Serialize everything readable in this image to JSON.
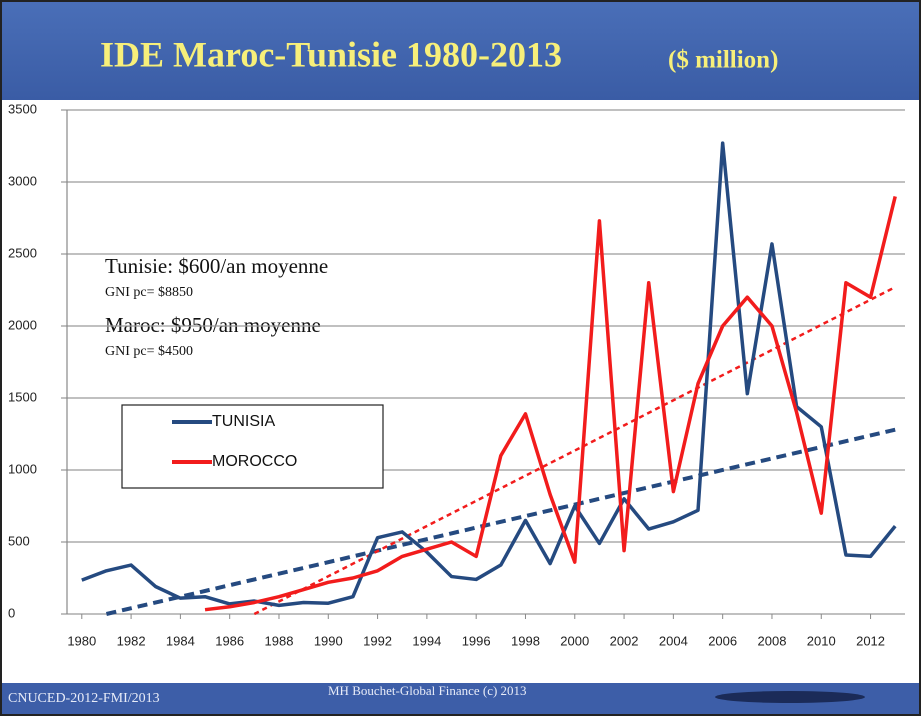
{
  "chart_data": {
    "type": "line",
    "title": "IDE Maroc-Tunisie 1980-2013",
    "subtitle": "($ million)",
    "x": [
      1980,
      1981,
      1982,
      1983,
      1984,
      1985,
      1986,
      1987,
      1988,
      1989,
      1990,
      1991,
      1992,
      1993,
      1994,
      1995,
      1996,
      1997,
      1998,
      1999,
      2000,
      2001,
      2002,
      2003,
      2004,
      2005,
      2006,
      2007,
      2008,
      2009,
      2010,
      2011,
      2012,
      2013
    ],
    "series": [
      {
        "name": "TUNISIA",
        "color": "#254a80",
        "values": [
          235,
          300,
          340,
          190,
          110,
          120,
          70,
          90,
          60,
          80,
          75,
          120,
          530,
          570,
          430,
          260,
          240,
          340,
          650,
          350,
          750,
          490,
          800,
          590,
          640,
          720,
          3270,
          1530,
          2570,
          1440,
          1300,
          410,
          400,
          610
        ]
      },
      {
        "name": "MOROCCO",
        "color": "#f21c1c",
        "values": [
          null,
          null,
          null,
          null,
          null,
          30,
          50,
          80,
          120,
          170,
          220,
          250,
          300,
          400,
          450,
          500,
          400,
          1100,
          1390,
          830,
          360,
          2730,
          440,
          2300,
          850,
          1600,
          2000,
          2200,
          2000,
          1400,
          700,
          2300,
          2200,
          2900
        ]
      }
    ],
    "trendlines": [
      {
        "color": "#254a80",
        "x": [
          1981,
          2013
        ],
        "values": [
          0,
          1280
        ]
      },
      {
        "color": "#f21c1c",
        "x": [
          1987,
          2013
        ],
        "values": [
          0,
          2270
        ]
      }
    ],
    "xlim": [
      1979.4,
      2013.6
    ],
    "xticks": [
      1980,
      1982,
      1984,
      1986,
      1988,
      1990,
      1992,
      1994,
      1996,
      1998,
      2000,
      2002,
      2004,
      2006,
      2008,
      2010,
      2012
    ],
    "ylim": [
      0,
      3500
    ],
    "yticks": [
      0,
      500,
      1000,
      1500,
      2000,
      2500,
      3000,
      3500
    ],
    "grid": true,
    "annotations": [
      "Tunisie: $600/an moyenne",
      "GNI pc= $8850",
      "Maroc: $950/an moyenne",
      "GNI pc= $4500"
    ],
    "footer_left": "CNUCED-2012-FMI/2013",
    "footer_center": "MH Bouchet-Global Finance (c) 2013"
  }
}
